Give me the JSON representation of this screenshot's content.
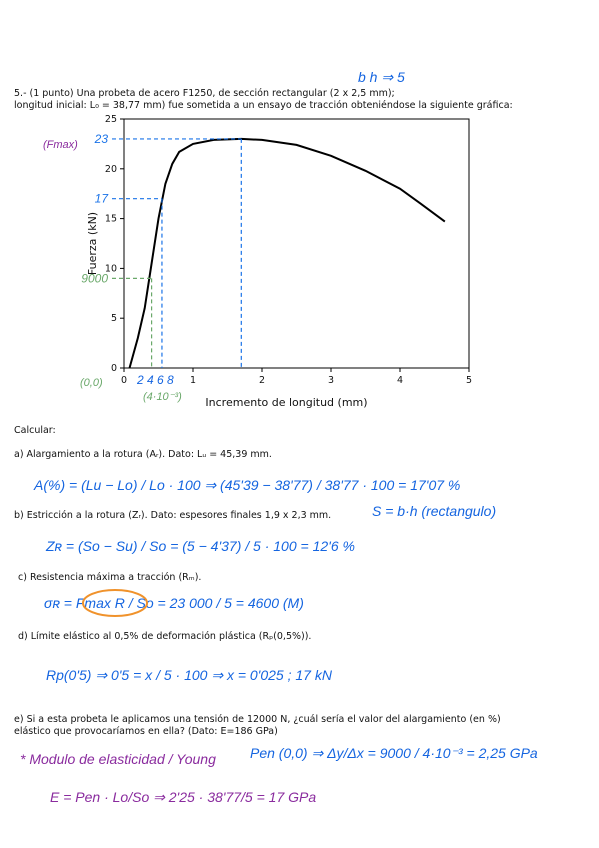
{
  "problem": {
    "line1": "5.- (1 punto) Una probeta de acero F1250, de sección rectangular (2 x 2,5 mm);",
    "line2": "longitud inicial: L₀ = 38,77 mm) fue sometida a un ensayo de tracción obteniéndose la siguiente gráfica:"
  },
  "chart_data": {
    "type": "line",
    "x_label": "Incremento de longitud (mm)",
    "y_label": "Fuerza (kN)",
    "x": [
      0.08,
      0.2,
      0.3,
      0.4,
      0.5,
      0.6,
      0.7,
      0.8,
      1.0,
      1.3,
      1.7,
      2.0,
      2.5,
      3.0,
      3.5,
      4.0,
      4.3,
      4.65
    ],
    "values": [
      0,
      3,
      6,
      10.5,
      15,
      18.5,
      20.5,
      21.7,
      22.5,
      22.9,
      23,
      22.9,
      22.4,
      21.3,
      19.8,
      18,
      16.5,
      14.7
    ],
    "color": "#000000",
    "xlim": [
      0,
      5
    ],
    "ylim": [
      0,
      25
    ],
    "xticks": [
      0,
      1,
      2,
      3,
      4,
      5
    ],
    "yticks": [
      0,
      5,
      10,
      15,
      20,
      25
    ],
    "guides": [
      {
        "label": "23",
        "value": 23,
        "x": 1.7,
        "color": "#1a73e8"
      },
      {
        "label": "17",
        "value": 17,
        "x": 0.55,
        "color": "#1a73e8"
      },
      {
        "label": "9000",
        "value": 9,
        "x": 0.4,
        "color": "#6aa86a"
      }
    ],
    "notes": {
      "fmax": "(Fmax)",
      "origin": "(0,0)",
      "small_ticks": "2 4 6 8",
      "strain": "(4·10⁻³)",
      "bh": "b  h  ⇒ 5"
    }
  },
  "questions": {
    "intro": "Calcular:",
    "a": {
      "text": "a) Alargamiento a la rotura (Aᵣ). Dato: Lᵤ = 45,39 mm.",
      "work": "A(%) = (Lu − Lo) / Lo · 100 ⇒ (45'39 − 38'77) / 38'77 · 100 = 17'07 %"
    },
    "b": {
      "text": "b) Estricción a la rotura (Zᵣ). Dato: espesores finales 1,9 x 2,3 mm.",
      "side": "S = b·h (rectangulo)",
      "work": "Zʀ = (So − Su) / So = (5 − 4'37) / 5 · 100 = 12'6 %"
    },
    "c": {
      "text": "c) Resistencia máxima a tracción (Rₘ).",
      "work": "σʀ = Fmax R / So = 23 000 / 5 = 4600 (M)"
    },
    "d": {
      "text": "d) Límite elástico al 0,5% de deformación plástica (Rₚ(0,5%)).",
      "work": "Rp(0'5) ⇒ 0'5 = x / 5 · 100 ⇒ x = 0'025 ; 17 kN"
    },
    "e": {
      "text1": "e) Si a esta probeta le aplicamos una tensión de 12000 N, ¿cuál sería el valor del alargamiento (en %)",
      "text2": "elástico que provocaríamos en ella? (Dato: E=186 GPa)",
      "note": "* Modulo de elasticidad / Young",
      "work1": "Pen (0,0) ⇒ Δy/Δx = 9000 / 4·10⁻³ = 2,25 GPa",
      "work2": "E = Pen · Lo/So ⇒ 2'25 · 38'77/5 = 17 GPa"
    }
  }
}
